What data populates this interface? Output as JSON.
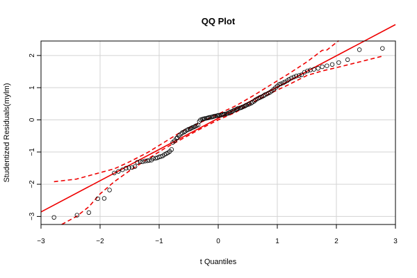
{
  "chart_data": {
    "type": "scatter",
    "title": "QQ Plot",
    "xlabel": "t Quantiles",
    "ylabel": "Studentized Residuals(mylm)",
    "xlim": [
      -3,
      3
    ],
    "ylim": [
      -3.25,
      2.45
    ],
    "x_ticks": [
      -3,
      -2,
      -1,
      0,
      1,
      2,
      3
    ],
    "y_ticks": [
      -3,
      -2,
      -1,
      0,
      1,
      2
    ],
    "x_tick_labels": [
      "−3",
      "−2",
      "−1",
      "0",
      "1",
      "2",
      "3"
    ],
    "y_tick_labels": [
      "−3",
      "−2",
      "−1",
      "0",
      "1",
      "2"
    ],
    "grid": true,
    "points": [
      [
        -2.78,
        -3.03
      ],
      [
        -2.39,
        -2.96
      ],
      [
        -2.19,
        -2.88
      ],
      [
        -2.04,
        -2.45
      ],
      [
        -1.93,
        -2.44
      ],
      [
        -1.84,
        -2.18
      ],
      [
        -1.76,
        -1.65
      ],
      [
        -1.69,
        -1.6
      ],
      [
        -1.62,
        -1.55
      ],
      [
        -1.56,
        -1.5
      ],
      [
        -1.51,
        -1.49
      ],
      [
        -1.46,
        -1.48
      ],
      [
        -1.41,
        -1.45
      ],
      [
        -1.37,
        -1.32
      ],
      [
        -1.32,
        -1.3
      ],
      [
        -1.28,
        -1.3
      ],
      [
        -1.24,
        -1.28
      ],
      [
        -1.2,
        -1.27
      ],
      [
        -1.17,
        -1.26
      ],
      [
        -1.13,
        -1.25
      ],
      [
        -1.1,
        -1.2
      ],
      [
        -1.06,
        -1.19
      ],
      [
        -1.03,
        -1.18
      ],
      [
        -1.0,
        -1.15
      ],
      [
        -0.97,
        -1.14
      ],
      [
        -0.94,
        -1.12
      ],
      [
        -0.91,
        -1.08
      ],
      [
        -0.88,
        -1.05
      ],
      [
        -0.85,
        -1.02
      ],
      [
        -0.82,
        -0.98
      ],
      [
        -0.79,
        -0.92
      ],
      [
        -0.77,
        -0.7
      ],
      [
        -0.74,
        -0.65
      ],
      [
        -0.71,
        -0.58
      ],
      [
        -0.69,
        -0.55
      ],
      [
        -0.66,
        -0.48
      ],
      [
        -0.63,
        -0.44
      ],
      [
        -0.61,
        -0.4
      ],
      [
        -0.58,
        -0.38
      ],
      [
        -0.56,
        -0.35
      ],
      [
        -0.53,
        -0.32
      ],
      [
        -0.51,
        -0.3
      ],
      [
        -0.48,
        -0.28
      ],
      [
        -0.46,
        -0.26
      ],
      [
        -0.44,
        -0.24
      ],
      [
        -0.41,
        -0.22
      ],
      [
        -0.39,
        -0.2
      ],
      [
        -0.37,
        -0.18
      ],
      [
        -0.34,
        -0.16
      ],
      [
        -0.32,
        -0.05
      ],
      [
        -0.3,
        0.0
      ],
      [
        -0.27,
        0.02
      ],
      [
        -0.25,
        0.03
      ],
      [
        -0.23,
        0.04
      ],
      [
        -0.2,
        0.05
      ],
      [
        -0.18,
        0.06
      ],
      [
        -0.16,
        0.07
      ],
      [
        -0.14,
        0.08
      ],
      [
        -0.11,
        0.09
      ],
      [
        -0.09,
        0.1
      ],
      [
        -0.07,
        0.11
      ],
      [
        -0.05,
        0.12
      ],
      [
        -0.02,
        0.13
      ],
      [
        0.0,
        0.14
      ],
      [
        0.02,
        0.14
      ],
      [
        0.05,
        0.15
      ],
      [
        0.07,
        0.16
      ],
      [
        0.09,
        0.17
      ],
      [
        0.11,
        0.18
      ],
      [
        0.14,
        0.19
      ],
      [
        0.16,
        0.2
      ],
      [
        0.18,
        0.22
      ],
      [
        0.2,
        0.24
      ],
      [
        0.23,
        0.26
      ],
      [
        0.25,
        0.28
      ],
      [
        0.27,
        0.3
      ],
      [
        0.3,
        0.32
      ],
      [
        0.32,
        0.34
      ],
      [
        0.34,
        0.36
      ],
      [
        0.37,
        0.37
      ],
      [
        0.39,
        0.38
      ],
      [
        0.41,
        0.4
      ],
      [
        0.44,
        0.42
      ],
      [
        0.46,
        0.44
      ],
      [
        0.48,
        0.46
      ],
      [
        0.51,
        0.48
      ],
      [
        0.53,
        0.5
      ],
      [
        0.56,
        0.52
      ],
      [
        0.58,
        0.55
      ],
      [
        0.61,
        0.58
      ],
      [
        0.63,
        0.62
      ],
      [
        0.66,
        0.65
      ],
      [
        0.69,
        0.68
      ],
      [
        0.71,
        0.7
      ],
      [
        0.74,
        0.72
      ],
      [
        0.77,
        0.75
      ],
      [
        0.79,
        0.78
      ],
      [
        0.82,
        0.8
      ],
      [
        0.85,
        0.83
      ],
      [
        0.88,
        0.86
      ],
      [
        0.91,
        0.9
      ],
      [
        0.94,
        0.95
      ],
      [
        0.97,
        1.0
      ],
      [
        1.0,
        1.05
      ],
      [
        1.03,
        1.1
      ],
      [
        1.06,
        1.12
      ],
      [
        1.1,
        1.15
      ],
      [
        1.13,
        1.18
      ],
      [
        1.17,
        1.22
      ],
      [
        1.2,
        1.26
      ],
      [
        1.24,
        1.3
      ],
      [
        1.28,
        1.33
      ],
      [
        1.32,
        1.36
      ],
      [
        1.37,
        1.38
      ],
      [
        1.41,
        1.4
      ],
      [
        1.46,
        1.48
      ],
      [
        1.51,
        1.52
      ],
      [
        1.56,
        1.55
      ],
      [
        1.62,
        1.57
      ],
      [
        1.69,
        1.6
      ],
      [
        1.76,
        1.65
      ],
      [
        1.84,
        1.68
      ],
      [
        1.93,
        1.72
      ],
      [
        2.04,
        1.78
      ],
      [
        2.19,
        1.87
      ],
      [
        2.39,
        2.18
      ],
      [
        2.78,
        2.22
      ]
    ],
    "reference_line": {
      "slope": 0.97,
      "intercept": 0.05
    },
    "envelope_upper": [
      [
        -2.78,
        -1.92
      ],
      [
        -2.4,
        -1.84
      ],
      [
        -2.0,
        -1.64
      ],
      [
        -1.76,
        -1.52
      ],
      [
        -1.5,
        -1.3
      ],
      [
        -1.2,
        -1.02
      ],
      [
        -0.9,
        -0.68
      ],
      [
        -0.6,
        -0.34
      ],
      [
        -0.3,
        -0.08
      ],
      [
        0.0,
        0.18
      ],
      [
        0.3,
        0.44
      ],
      [
        0.6,
        0.76
      ],
      [
        0.9,
        1.1
      ],
      [
        1.2,
        1.44
      ],
      [
        1.5,
        1.8
      ],
      [
        1.76,
        2.16
      ],
      [
        1.84,
        2.17
      ],
      [
        2.04,
        2.46
      ]
    ],
    "envelope_lower": [
      [
        -2.65,
        -3.25
      ],
      [
        -2.4,
        -3.0
      ],
      [
        -2.19,
        -2.7
      ],
      [
        -2.0,
        -2.3
      ],
      [
        -1.76,
        -1.92
      ],
      [
        -1.5,
        -1.58
      ],
      [
        -1.2,
        -1.22
      ],
      [
        -0.9,
        -0.88
      ],
      [
        -0.6,
        -0.58
      ],
      [
        -0.3,
        -0.28
      ],
      [
        0.0,
        0.0
      ],
      [
        0.3,
        0.24
      ],
      [
        0.6,
        0.56
      ],
      [
        0.9,
        0.84
      ],
      [
        1.2,
        1.1
      ],
      [
        1.5,
        1.38
      ],
      [
        1.76,
        1.52
      ],
      [
        2.04,
        1.64
      ],
      [
        2.39,
        1.8
      ],
      [
        2.78,
        1.98
      ]
    ],
    "colors": {
      "points": "#000000",
      "line": "#ee0000",
      "grid": "#d3d3d3",
      "axis": "#000000"
    }
  }
}
